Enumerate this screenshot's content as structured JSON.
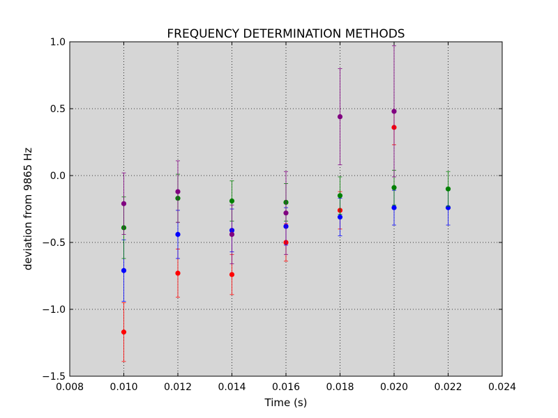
{
  "chart_data": {
    "type": "scatter",
    "title": "FREQUENCY DETERMINATION METHODS",
    "xlabel": "Time (s)",
    "ylabel": "deviation from 9865 Hz",
    "xlim": [
      0.008,
      0.024
    ],
    "ylim": [
      -1.5,
      1.0
    ],
    "xticks": [
      0.008,
      0.01,
      0.012,
      0.014,
      0.016,
      0.018,
      0.02,
      0.022,
      0.024
    ],
    "xtick_labels": [
      "0.008",
      "0.010",
      "0.012",
      "0.014",
      "0.016",
      "0.018",
      "0.020",
      "0.022",
      "0.024"
    ],
    "yticks": [
      -1.5,
      -1.0,
      -0.5,
      0.0,
      0.5,
      1.0
    ],
    "ytick_labels": [
      "−1.5",
      "−1.0",
      "−0.5",
      "0.0",
      "0.5",
      "1.0"
    ],
    "grid": true,
    "background": "#d6d6d6",
    "series": [
      {
        "color": "#ff0000",
        "points": [
          {
            "x": 0.01,
            "y": -1.17,
            "err": 0.22
          },
          {
            "x": 0.012,
            "y": -0.73,
            "err": 0.18
          },
          {
            "x": 0.014,
            "y": -0.74,
            "err": 0.15
          },
          {
            "x": 0.016,
            "y": -0.5,
            "err": 0.14
          },
          {
            "x": 0.018,
            "y": -0.26,
            "err": 0.14
          },
          {
            "x": 0.02,
            "y": 0.36,
            "err": 0.13
          }
        ]
      },
      {
        "color": "#0000ff",
        "points": [
          {
            "x": 0.01,
            "y": -0.71,
            "err": 0.23
          },
          {
            "x": 0.012,
            "y": -0.44,
            "err": 0.18
          },
          {
            "x": 0.014,
            "y": -0.41,
            "err": 0.16
          },
          {
            "x": 0.016,
            "y": -0.38,
            "err": 0.14
          },
          {
            "x": 0.018,
            "y": -0.31,
            "err": 0.14
          },
          {
            "x": 0.02,
            "y": -0.24,
            "err": 0.13
          },
          {
            "x": 0.022,
            "y": -0.24,
            "err": 0.13
          }
        ]
      },
      {
        "color": "#008000",
        "points": [
          {
            "x": 0.01,
            "y": -0.39,
            "err": 0.23
          },
          {
            "x": 0.012,
            "y": -0.17,
            "err": 0.18
          },
          {
            "x": 0.014,
            "y": -0.19,
            "err": 0.15
          },
          {
            "x": 0.016,
            "y": -0.2,
            "err": 0.14
          },
          {
            "x": 0.018,
            "y": -0.15,
            "err": 0.14
          },
          {
            "x": 0.02,
            "y": -0.09,
            "err": 0.13
          },
          {
            "x": 0.022,
            "y": -0.1,
            "err": 0.13
          }
        ]
      },
      {
        "color": "#800080",
        "points": [
          {
            "x": 0.01,
            "y": -0.21,
            "err": 0.23
          },
          {
            "x": 0.012,
            "y": -0.12,
            "err": 0.23
          },
          {
            "x": 0.014,
            "y": -0.44,
            "err": 0.22
          },
          {
            "x": 0.016,
            "y": -0.28,
            "err": 0.31
          },
          {
            "x": 0.018,
            "y": 0.44,
            "err": 0.36
          },
          {
            "x": 0.02,
            "y": 0.48,
            "err": 0.49
          }
        ]
      }
    ]
  }
}
